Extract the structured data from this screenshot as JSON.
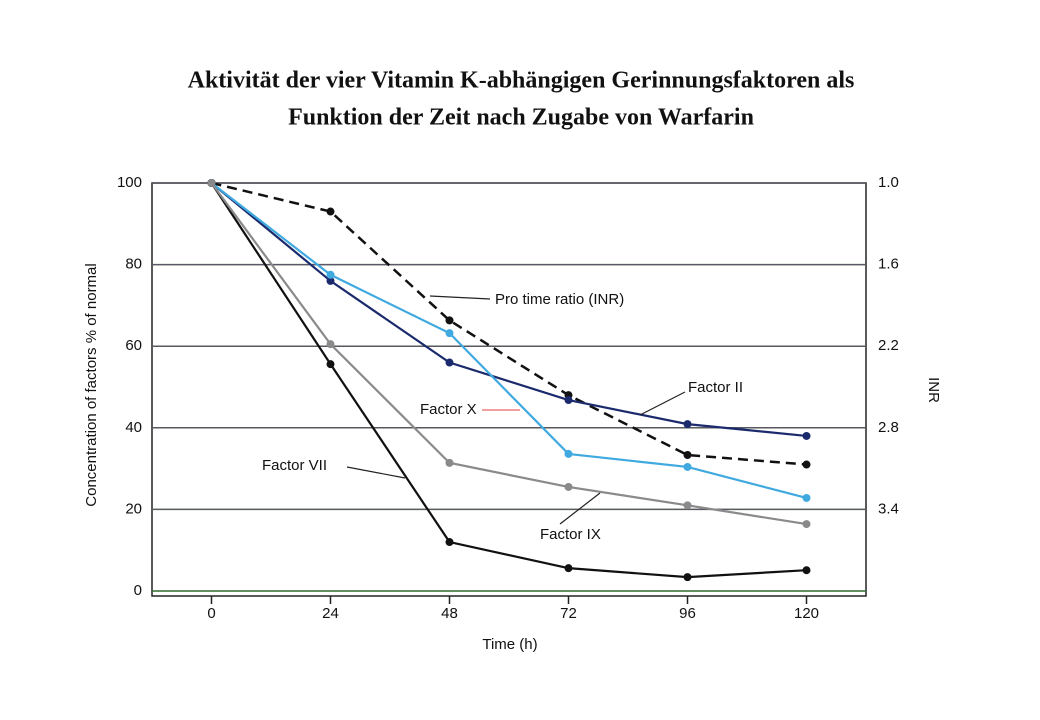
{
  "chart_data": {
    "type": "line",
    "title": [
      "Aktivität der vier Vitamin K-abhängigen Gerinnungsfaktoren als",
      "Funktion der Zeit nach Zugabe von Warfarin"
    ],
    "x_label": "Time (h)",
    "y_label": "Concentration of factors % of normal",
    "y2_label": "INR",
    "x": [
      0,
      24,
      48,
      72,
      96,
      120
    ],
    "xlim": [
      -12,
      132
    ],
    "xticks": [
      0,
      24,
      48,
      72,
      96,
      120
    ],
    "ylim": [
      0,
      100
    ],
    "yticks": [
      0,
      20,
      40,
      60,
      80,
      100
    ],
    "y2lim": [
      4,
      1
    ],
    "y2ticks": [
      {
        "value": 1,
        "label": "1.0"
      },
      1.6,
      2.2,
      2.8,
      3.4
    ],
    "grid": true,
    "series": [
      {
        "name": "Pro time ratio (INR)",
        "color": "#111111",
        "dashed": true,
        "axis": "y2",
        "values": [
          1,
          1.21,
          2.01,
          2.56,
          3.0,
          3.07
        ]
      },
      {
        "name": "Factor II",
        "color": "#1a2a6c",
        "values": [
          100,
          76,
          56,
          46.8,
          40.9,
          38
        ]
      },
      {
        "name": "Factor X",
        "color": "#3fa9e0",
        "values": [
          100,
          77.5,
          63.2,
          33.6,
          30.4,
          22.8
        ]
      },
      {
        "name": "Factor VII",
        "color": "#111111",
        "values": [
          100,
          55.6,
          12,
          5.6,
          3.4,
          5.1
        ]
      },
      {
        "name": "Factor IX",
        "color": "#8a8a8a",
        "values": [
          100,
          60.5,
          31.4,
          25.5,
          21,
          16.4
        ]
      }
    ]
  }
}
